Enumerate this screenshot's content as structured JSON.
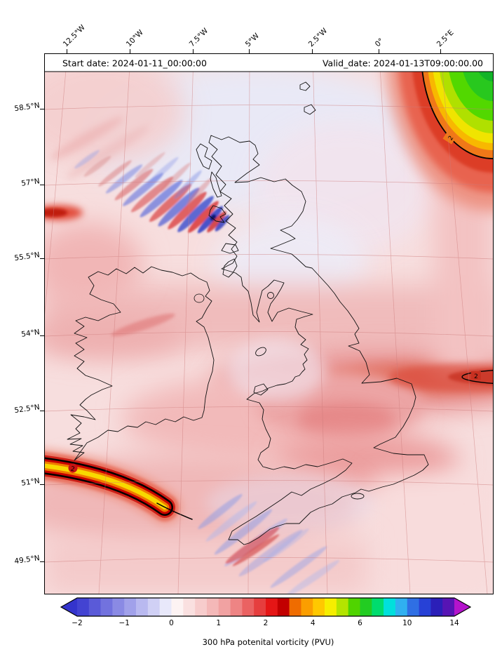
{
  "header": {
    "start_date": "Start date: 2024-01-11_00:00:00",
    "valid_date": "Valid_date: 2024-01-13T09:00:00.00"
  },
  "axes": {
    "lon_ticks": [
      "12.5°W",
      "10°W",
      "7.5°W",
      "5°W",
      "2.5°W",
      "0°",
      "2.5°E"
    ],
    "lat_ticks": [
      "58.5°N",
      "57°N",
      "55.5°N",
      "54°N",
      "52.5°N",
      "51°N",
      "49.5°N"
    ]
  },
  "colorbar": {
    "label": "300 hPa potenital vorticity (PVU)",
    "ticks": [
      "−2",
      "−1",
      "0",
      "1",
      "2",
      "4",
      "6",
      "10",
      "14"
    ],
    "left_arrow": "#3434cc",
    "right_arrow": "#b414cc",
    "segments": [
      "#4343d2",
      "#5a5ad8",
      "#7272de",
      "#8a8ae4",
      "#a1a1ea",
      "#b9b9f0",
      "#d0d0f5",
      "#e8e8fa",
      "#fdf3f3",
      "#fae0e0",
      "#f7cccc",
      "#f4b8b8",
      "#f1a2a2",
      "#ee8484",
      "#ea6262",
      "#e63e3e",
      "#e51616",
      "#c20000",
      "#ef6c00",
      "#fb9e00",
      "#ffc800",
      "#f6ee00",
      "#b4e400",
      "#50d400",
      "#22cc22",
      "#00dc6e",
      "#00e0dc",
      "#30b0f0",
      "#2f6fe4",
      "#2741d6",
      "#2b1fb8",
      "#5714b4"
    ]
  },
  "contours": {
    "labels": {
      "southwest": "2",
      "east": "2",
      "northeast": "2"
    }
  },
  "chart_data": {
    "type": "heatmap",
    "subtype": "filled-contour weather map",
    "variable": "300 hPa potential vorticity",
    "units": "PVU",
    "title_left": "Start date: 2024-01-11_00:00:00",
    "title_right": "Valid_date: 2024-01-13T09:00:00.00",
    "colorbar_label": "300 hPa potenital vorticity (PVU)",
    "x_tick_labels": [
      "12.5°W",
      "10°W",
      "7.5°W",
      "5°W",
      "2.5°W",
      "0°",
      "2.5°E"
    ],
    "y_tick_labels": [
      "58.5°N",
      "57°N",
      "55.5°N",
      "54°N",
      "52.5°N",
      "51°N",
      "49.5°N"
    ],
    "colorbar_tick_values": [
      -2,
      -1,
      0,
      1,
      2,
      4,
      6,
      10,
      14
    ],
    "level_boundaries": [
      -2,
      -1.75,
      -1.5,
      -1.25,
      -1,
      -0.75,
      -0.5,
      -0.25,
      0,
      0.25,
      0.5,
      0.75,
      1,
      1.25,
      1.5,
      1.75,
      2,
      2.5,
      3,
      3.5,
      4,
      4.5,
      5,
      5.5,
      6,
      7,
      8,
      9,
      10,
      11,
      12,
      13,
      14
    ],
    "level_colors": [
      "#4343d2",
      "#5a5ad8",
      "#7272de",
      "#8a8ae4",
      "#a1a1ea",
      "#b9b9f0",
      "#d0d0f5",
      "#e8e8fa",
      "#fdf3f3",
      "#fae0e0",
      "#f7cccc",
      "#f4b8b8",
      "#f1a2a2",
      "#ee8484",
      "#ea6262",
      "#e63e3e",
      "#e51616",
      "#c20000",
      "#ef6c00",
      "#fb9e00",
      "#ffc800",
      "#f6ee00",
      "#b4e400",
      "#50d400",
      "#22cc22",
      "#00dc6e",
      "#00e0dc",
      "#30b0f0",
      "#2f6fe4",
      "#2741d6",
      "#2b1fb8",
      "#5714b4"
    ],
    "under_color": "#3434cc",
    "over_color": "#b414cc",
    "highlighted_contour_level": 2,
    "map_region": {
      "lon_range": "about 13.5°W to 3.5°E",
      "lat_range": "about 49°N to 59.5°N",
      "coastlines": "Great Britain and Ireland"
    },
    "features": [
      {
        "name": "high-PV region",
        "location": "northeast corner near 2.5°E north of 57°N",
        "value": "PV rises beyond the 2 PVU contour to 6–10 PVU (orange, yellow, green bands)"
      },
      {
        "name": "PV streamer",
        "location": "southwest of Ireland near 51°N, 11–13°W",
        "value": "narrow streak of 2–5 PVU (dark red, orange, yellow core) outlined by labelled 2 PVU contour"
      },
      {
        "name": "closed 2 PVU contour",
        "location": "east edge near 53.2°N",
        "value": "small lens of about 2 PVU in a dark red band"
      },
      {
        "name": "wave-train ripples",
        "location": "northwest of Scotland near 57°N",
        "value": "alternating positive/negative PV anomalies of roughly ±1–2 PVU"
      },
      {
        "name": "background field",
        "location": "most of domain",
        "value": "about 0–1.5 PVU (white-pink to red shading)"
      }
    ]
  }
}
